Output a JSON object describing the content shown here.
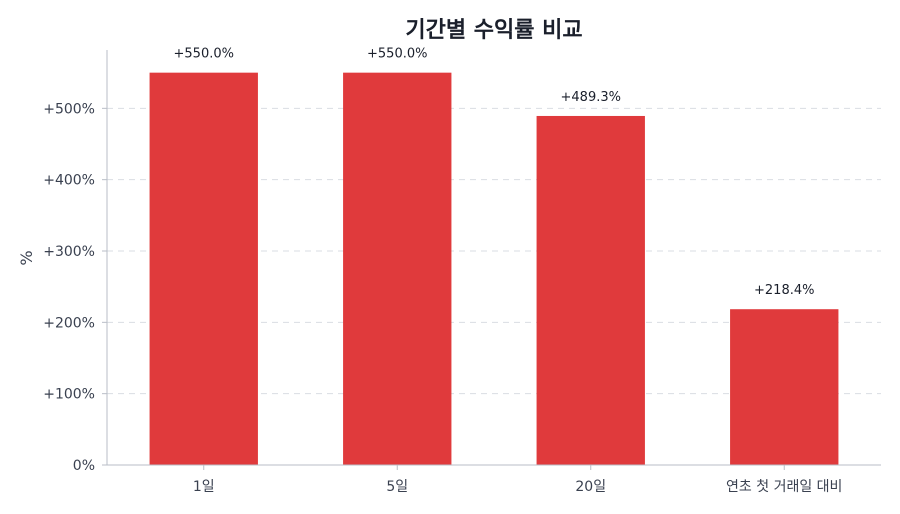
{
  "chart_data": {
    "type": "bar",
    "title": "기간별 수익률 비교",
    "xlabel": "",
    "ylabel": "%",
    "categories": [
      "1일",
      "5일",
      "20일",
      "연초 첫 거래일 대비"
    ],
    "values": [
      550.0,
      550.0,
      489.3,
      218.4
    ],
    "value_labels": [
      "+550.0%",
      "+550.0%",
      "+489.3%",
      "+218.4%"
    ],
    "yticks": [
      0,
      100,
      200,
      300,
      400,
      500
    ],
    "ytick_labels": [
      "0%",
      "+100%",
      "+200%",
      "+300%",
      "+400%",
      "+500%"
    ],
    "ylim": [
      0,
      600
    ],
    "grid": true,
    "bar_color": "#e03a3c"
  }
}
